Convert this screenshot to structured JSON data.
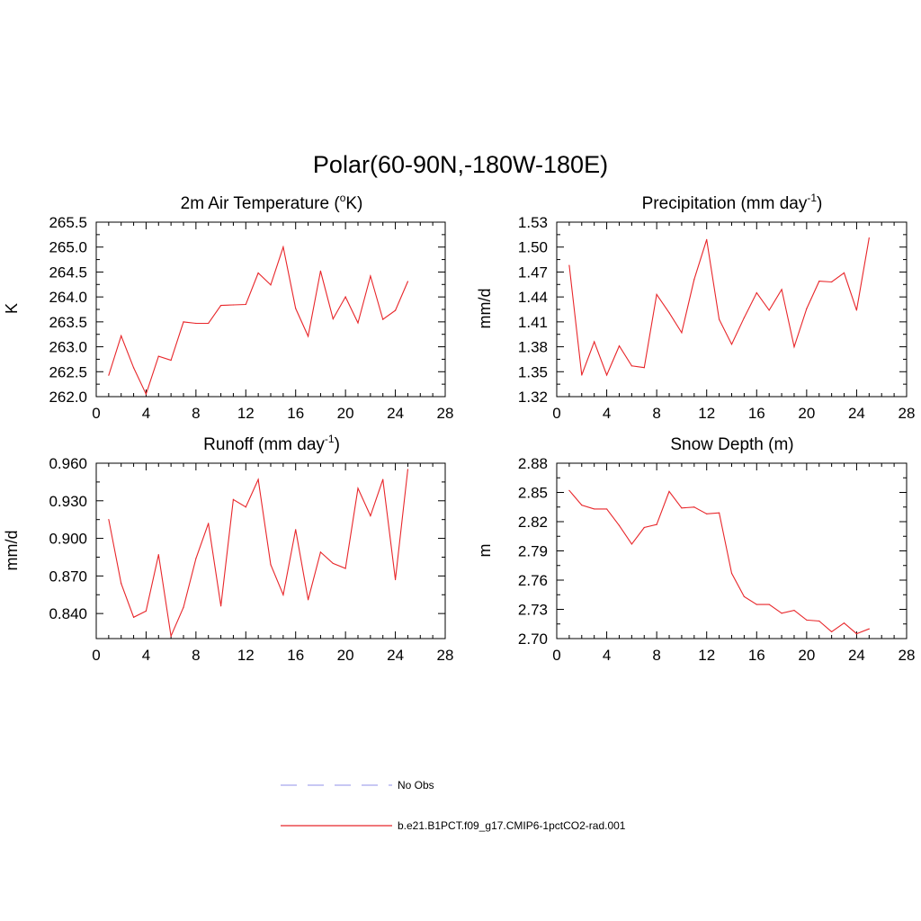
{
  "title": "Polar(60-90N,-180W-180E)",
  "colors": {
    "model_line": "#e8262a",
    "obs_line": "#a8a8ee",
    "frame": "#000000"
  },
  "legend": [
    {
      "label": "No Obs",
      "style": "dashed",
      "color": "#a8a8ee"
    },
    {
      "label": "b.e21.B1PCT.f09_g17.CMIP6-1pctCO2-rad.001",
      "style": "solid",
      "color": "#e8262a"
    }
  ],
  "panels": [
    {
      "title": "2m Air Temperature (",
      "title_sup": "o",
      "title_suffix": "K)",
      "ylabel": "K",
      "xticks": [
        "0",
        "4",
        "8",
        "12",
        "16",
        "20",
        "24",
        "28"
      ],
      "yticks": [
        "262.0",
        "262.5",
        "263.0",
        "263.5",
        "264.0",
        "264.5",
        "265.0",
        "265.5"
      ]
    },
    {
      "title": "Precipitation (mm day",
      "title_sup": "-1",
      "title_suffix": ")",
      "ylabel": "mm/d",
      "xticks": [
        "0",
        "4",
        "8",
        "12",
        "16",
        "20",
        "24",
        "28"
      ],
      "yticks": [
        "1.32",
        "1.35",
        "1.38",
        "1.41",
        "1.44",
        "1.47",
        "1.50",
        "1.53"
      ]
    },
    {
      "title": "Runoff (mm day",
      "title_sup": "-1",
      "title_suffix": ")",
      "ylabel": "mm/d",
      "xticks": [
        "0",
        "4",
        "8",
        "12",
        "16",
        "20",
        "24",
        "28"
      ],
      "yticks": [
        "0.840",
        "0.870",
        "0.900",
        "0.930",
        "0.960"
      ]
    },
    {
      "title": "Snow Depth (m)",
      "title_sup": "",
      "title_suffix": "",
      "ylabel": "m",
      "xticks": [
        "0",
        "4",
        "8",
        "12",
        "16",
        "20",
        "24",
        "28"
      ],
      "yticks": [
        "2.70",
        "2.73",
        "2.76",
        "2.79",
        "2.82",
        "2.85",
        "2.88"
      ]
    }
  ],
  "chart_data": [
    {
      "type": "line",
      "title": "2m Air Temperature (oK)",
      "xlabel": "",
      "ylabel": "K",
      "xlim": [
        0,
        28
      ],
      "ylim": [
        262.0,
        265.5
      ],
      "x_tick_values": [
        0,
        4,
        8,
        12,
        16,
        20,
        24,
        28
      ],
      "y_tick_values": [
        262.0,
        262.5,
        263.0,
        263.5,
        264.0,
        264.5,
        265.0,
        265.5
      ],
      "series": [
        {
          "name": "b.e21.B1PCT.f09_g17.CMIP6-1pctCO2-rad.001",
          "x": [
            1,
            2,
            3,
            4,
            5,
            6,
            7,
            8,
            9,
            10,
            11,
            12,
            13,
            14,
            15,
            16,
            17,
            18,
            19,
            20,
            21,
            22,
            23,
            24,
            25
          ],
          "y": [
            262.43,
            263.22,
            262.58,
            262.05,
            262.81,
            262.73,
            263.5,
            263.47,
            263.47,
            263.83,
            263.84,
            263.85,
            264.48,
            264.24,
            265.0,
            263.77,
            263.21,
            264.52,
            263.56,
            264.0,
            263.48,
            264.42,
            263.55,
            263.73,
            264.31
          ]
        }
      ]
    },
    {
      "type": "line",
      "title": "Precipitation (mm day-1)",
      "xlabel": "",
      "ylabel": "mm/d",
      "xlim": [
        0,
        28
      ],
      "ylim": [
        1.32,
        1.53
      ],
      "x_tick_values": [
        0,
        4,
        8,
        12,
        16,
        20,
        24,
        28
      ],
      "y_tick_values": [
        1.32,
        1.35,
        1.38,
        1.41,
        1.44,
        1.47,
        1.5,
        1.53
      ],
      "series": [
        {
          "name": "b.e21.B1PCT.f09_g17.CMIP6-1pctCO2-rad.001",
          "x": [
            1,
            2,
            3,
            4,
            5,
            6,
            7,
            8,
            9,
            10,
            11,
            12,
            13,
            14,
            15,
            16,
            17,
            18,
            19,
            20,
            21,
            22,
            23,
            24,
            25
          ],
          "y": [
            1.478,
            1.346,
            1.386,
            1.346,
            1.381,
            1.357,
            1.355,
            1.443,
            1.421,
            1.397,
            1.461,
            1.509,
            1.413,
            1.383,
            1.415,
            1.445,
            1.424,
            1.449,
            1.38,
            1.426,
            1.459,
            1.458,
            1.469,
            1.424,
            1.511
          ]
        }
      ]
    },
    {
      "type": "line",
      "title": "Runoff (mm day-1)",
      "xlabel": "",
      "ylabel": "mm/d",
      "xlim": [
        0,
        28
      ],
      "ylim": [
        0.82,
        0.96
      ],
      "x_tick_values": [
        0,
        4,
        8,
        12,
        16,
        20,
        24,
        28
      ],
      "y_tick_values": [
        0.84,
        0.87,
        0.9,
        0.93,
        0.96
      ],
      "series": [
        {
          "name": "b.e21.B1PCT.f09_g17.CMIP6-1pctCO2-rad.001",
          "x": [
            1,
            2,
            3,
            4,
            5,
            6,
            7,
            8,
            9,
            10,
            11,
            12,
            13,
            14,
            15,
            16,
            17,
            18,
            19,
            20,
            21,
            22,
            23,
            24,
            25
          ],
          "y": [
            0.915,
            0.864,
            0.837,
            0.842,
            0.887,
            0.822,
            0.845,
            0.884,
            0.912,
            0.846,
            0.931,
            0.925,
            0.947,
            0.879,
            0.855,
            0.907,
            0.851,
            0.889,
            0.88,
            0.876,
            0.94,
            0.918,
            0.947,
            0.867,
            0.955
          ]
        }
      ]
    },
    {
      "type": "line",
      "title": "Snow Depth (m)",
      "xlabel": "",
      "ylabel": "m",
      "xlim": [
        0,
        28
      ],
      "ylim": [
        2.7,
        2.88
      ],
      "x_tick_values": [
        0,
        4,
        8,
        12,
        16,
        20,
        24,
        28
      ],
      "y_tick_values": [
        2.7,
        2.73,
        2.76,
        2.79,
        2.82,
        2.85,
        2.88
      ],
      "series": [
        {
          "name": "b.e21.B1PCT.f09_g17.CMIP6-1pctCO2-rad.001",
          "x": [
            1,
            2,
            3,
            4,
            5,
            6,
            7,
            8,
            9,
            10,
            11,
            12,
            13,
            14,
            15,
            16,
            17,
            18,
            19,
            20,
            21,
            22,
            23,
            24,
            25
          ],
          "y": [
            2.852,
            2.837,
            2.833,
            2.833,
            2.816,
            2.797,
            2.814,
            2.817,
            2.851,
            2.834,
            2.835,
            2.828,
            2.829,
            2.767,
            2.743,
            2.735,
            2.735,
            2.726,
            2.729,
            2.719,
            2.718,
            2.707,
            2.716,
            2.705,
            2.71
          ]
        }
      ]
    }
  ]
}
